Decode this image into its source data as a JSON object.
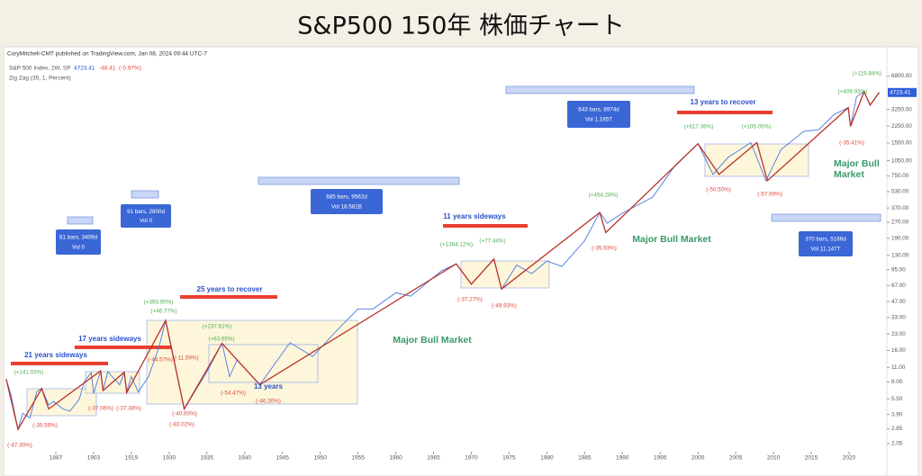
{
  "title": "S&P500 150年 株価チャート",
  "chart_data": {
    "type": "line",
    "publisher": "CoryMitchell-CMT published on TradingView.com, Jan 08, 2024 09:44 UTC-7",
    "symbol": "S&P 500 Index, 2W, SP",
    "last": 4723.41,
    "change": -46.41,
    "change_percent": -0.97,
    "change_percent_label": "(-0.97%)",
    "indicator": "Zig Zag (35, 1, Percent)",
    "log_scale": true,
    "grid": false,
    "xlim": [
      1866,
      2025
    ],
    "ylim": [
      1.2,
      10000
    ],
    "xticks": [
      1887,
      1903,
      1919,
      1930,
      1935,
      1940,
      1945,
      1950,
      1955,
      1960,
      1965,
      1970,
      1975,
      1980,
      1985,
      1990,
      1995,
      2000,
      2005,
      2010,
      2015,
      2020
    ],
    "yticks": [
      {
        "value": 2.05,
        "label": "2.05"
      },
      {
        "value": 2.85,
        "label": "2.85"
      },
      {
        "value": 3.9,
        "label": "3.90"
      },
      {
        "value": 5.5,
        "label": "5.50"
      },
      {
        "value": 8,
        "label": "8.00"
      },
      {
        "value": 11,
        "label": "11.00"
      },
      {
        "value": 16,
        "label": "16.00"
      },
      {
        "value": 23,
        "label": "23.00"
      },
      {
        "value": 33,
        "label": "33.00"
      },
      {
        "value": 47,
        "label": "47.00"
      },
      {
        "value": 67,
        "label": "67.00"
      },
      {
        "value": 95,
        "label": "95.00"
      },
      {
        "value": 130,
        "label": "130.00"
      },
      {
        "value": 190,
        "label": "190.00"
      },
      {
        "value": 270,
        "label": "270.00"
      },
      {
        "value": 370,
        "label": "370.00"
      },
      {
        "value": 530,
        "label": "530.00"
      },
      {
        "value": 750,
        "label": "750.00"
      },
      {
        "value": 1050,
        "label": "1050.00"
      },
      {
        "value": 1550,
        "label": "1550.00"
      },
      {
        "value": 2250,
        "label": "2250.00"
      },
      {
        "value": 3250,
        "label": "3250.00"
      },
      {
        "value": 6800,
        "label": "6800.00"
      }
    ],
    "series": [
      {
        "color": "#4a78e0",
        "x": [
          1866,
          1868,
          1871,
          1873,
          1876,
          1879,
          1881,
          1884,
          1886,
          1890,
          1893,
          1897,
          1899,
          1902,
          1903,
          1906,
          1907,
          1909,
          1914,
          1916,
          1917,
          1919,
          1921,
          1924,
          1927,
          1929,
          1930,
          1932,
          1935,
          1937,
          1938,
          1939,
          1942,
          1946,
          1949,
          1952,
          1955,
          1957,
          1960,
          1962,
          1966,
          1968,
          1970,
          1973,
          1974,
          1976,
          1978,
          1980,
          1982,
          1985,
          1987,
          1988,
          1990,
          1994,
          1997,
          2000,
          2002,
          2004,
          2007,
          2009,
          2011,
          2014,
          2016,
          2018,
          2019.9,
          2020.2,
          2021,
          2022,
          2022.8,
          2024
        ],
        "values": [
          8.5,
          6.0,
          2.8,
          4.0,
          3.6,
          6.5,
          6.9,
          4.8,
          5.2,
          4.4,
          4.2,
          5.5,
          8.0,
          9.8,
          6.2,
          10.2,
          6.6,
          10.0,
          7.5,
          9.8,
          6.5,
          9.0,
          6.4,
          9.0,
          17,
          31,
          21,
          4.4,
          10,
          18.7,
          9,
          13,
          7.5,
          19,
          14,
          24,
          40,
          40,
          57,
          53,
          92,
          108,
          69,
          120,
          62,
          105,
          87,
          115,
          102,
          180,
          335,
          265,
          330,
          470,
          950,
          1527,
          776,
          1130,
          1565,
          676,
          1340,
          2000,
          2080,
          2900,
          3386,
          2240,
          4300,
          4796,
          3580,
          4723.41
        ]
      },
      {
        "color": "#b8322a",
        "x": [
          1866,
          1871,
          1881,
          1884,
          1906,
          1907,
          1916,
          1917,
          1929,
          1932,
          1937,
          1942,
          1968,
          1970,
          1973,
          1974,
          1987,
          1987.8,
          2000,
          2002.8,
          2007.8,
          2009.2,
          2019.9,
          2020.2,
          2022,
          2022.8,
          2024
        ],
        "values": [
          8.5,
          2.8,
          6.9,
          4.4,
          10.2,
          6.6,
          9.9,
          6.3,
          31,
          4.4,
          18.7,
          7.5,
          108,
          69,
          120,
          62,
          335,
          215,
          1527,
          776,
          1565,
          676,
          3386,
          2240,
          4796,
          3580,
          4723.41
        ]
      }
    ],
    "annotation_colors": {
      "gains": "#4caf50",
      "drops": "#e0483c",
      "periods": "#2a52c9",
      "trends": "#3a9a6a",
      "ranges": "#3a66d6"
    },
    "gains": [
      "(+141.03%)",
      "(+393.95%)",
      "(+46.77%)",
      "(+237.61%)",
      "(+63.65%)",
      "(+1364.12%)",
      "(+77.44%)",
      "(+454.28%)",
      "(+617.36%)",
      "(+105.05%)",
      "(+408.93%)",
      "(+119.84%)"
    ],
    "drops": [
      "(-47.30%)",
      "(-35.56%)",
      "(-37.06%)",
      "(-37.38%)",
      "(-44.57%)",
      "(-11.59%)",
      "(-40.60%)",
      "(-83.02%)",
      "(-54.47%)",
      "(-46.30%)",
      "(-37.27%)",
      "(-49.93%)",
      "(-35.93%)",
      "(-50.50%)",
      "(-57.69%)",
      "(-35.41%)"
    ],
    "periods": [
      "21 years sideways",
      "17 years sideways",
      "25 years to recover",
      "11 years sideways",
      "13 years to recover",
      "13 years"
    ],
    "trends": [
      "Major Bull Market",
      "Major Bull Market",
      "Major Bull",
      "Market"
    ],
    "ranges": [
      [
        "81 bars, 3409d",
        "Vol 0"
      ],
      [
        "91 bars, 2800d",
        "Vol 0"
      ],
      [
        "685 bars, 9562d",
        "Vol 18.581B"
      ],
      [
        "643 bars, 8974d",
        "Vol 1.165T"
      ],
      [
        "370 bars, 5166d",
        "Vol 11.147T"
      ]
    ]
  }
}
